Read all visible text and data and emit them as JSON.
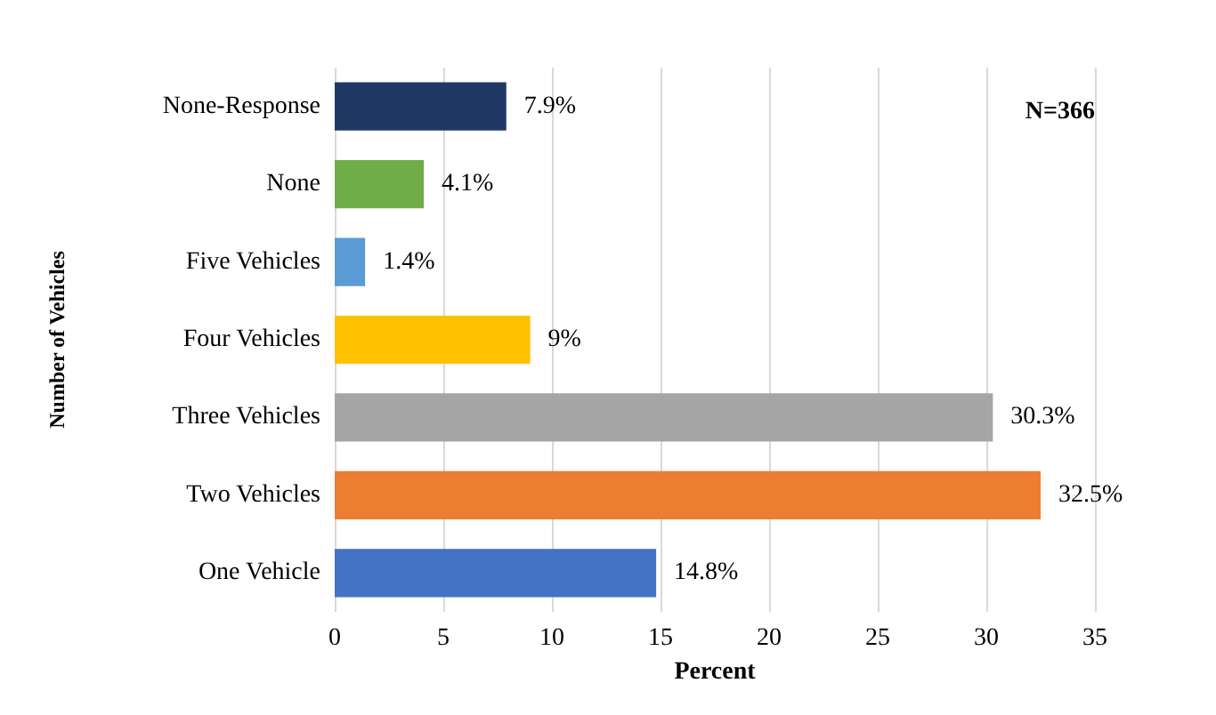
{
  "chart_data": {
    "type": "bar",
    "orientation": "horizontal",
    "xlabel": "Percent",
    "ylabel": "Number of Vehicles",
    "categories": [
      "None-Response",
      "None",
      "Five Vehicles",
      "Four Vehicles",
      "Three Vehicles",
      "Two Vehicles",
      "One Vehicle"
    ],
    "values": [
      7.9,
      4.1,
      1.4,
      9,
      30.3,
      32.5,
      14.8
    ],
    "colors": [
      "#203864",
      "#70ad47",
      "#5b9bd5",
      "#ffc000",
      "#a5a5a5",
      "#ed7d31",
      "#4472c4"
    ],
    "value_labels": [
      "7.9%",
      "4.1%",
      "1.4%",
      "9%",
      "30.3%",
      "32.5%",
      "14.8%"
    ],
    "xlim": [
      0,
      35
    ],
    "xticks": [
      0,
      5,
      10,
      15,
      20,
      25,
      30,
      35
    ],
    "grid": "x",
    "annotations": [
      "N=366"
    ]
  }
}
